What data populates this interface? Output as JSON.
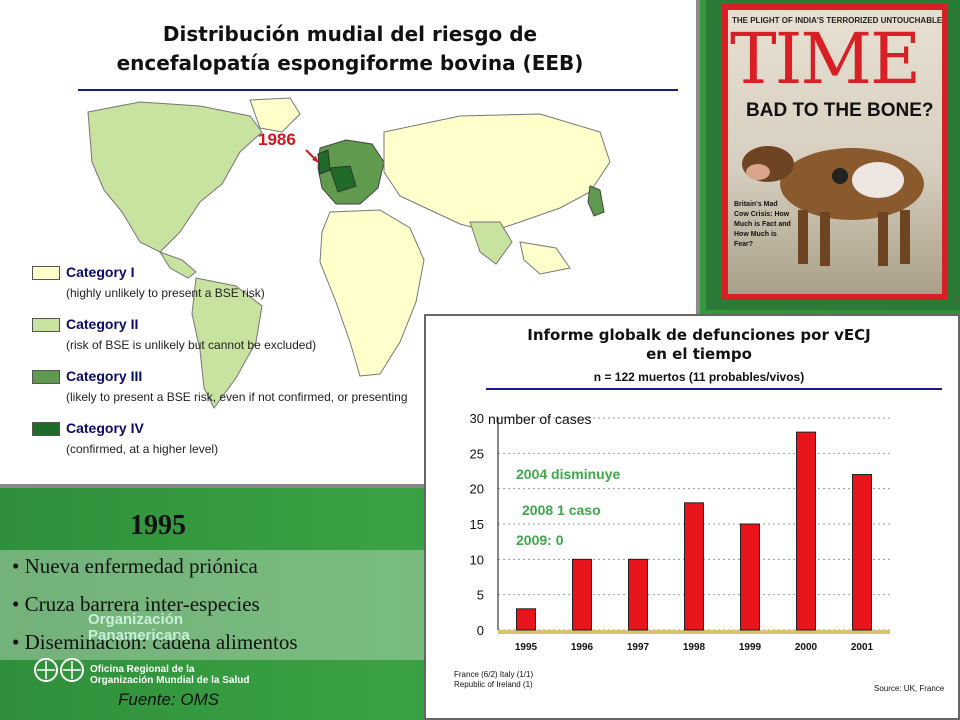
{
  "map_title": {
    "line1": "Distribución mudial del riesgo de",
    "line2": "encefalopatía espongiforme bovina (EEB)"
  },
  "map_label_year": "1986",
  "legend": [
    {
      "name": "Category I",
      "desc": "(highly unlikely to present a BSE risk)",
      "color": "#ffffcc"
    },
    {
      "name": "Category II",
      "desc": "(risk of BSE is unlikely but cannot be excluded)",
      "color": "#c8e3a0"
    },
    {
      "name": "Category III",
      "desc": "(likely to present a BSE risk, even if not confirmed, or presenting",
      "color": "#5f9a4e"
    },
    {
      "name": "Category IV",
      "desc": "(confirmed, at a higher level)",
      "color": "#1f6b2a"
    }
  ],
  "time_cover": {
    "top_text": "THE PLIGHT OF INDIA'S TERRORIZED UNTOUCHABLES",
    "title": "TIME",
    "headline": "BAD TO THE BONE?",
    "side_text": "Britain's Mad Cow Crisis: How Much is Fact and How Much is Fear?"
  },
  "left_panel": {
    "year": "1995",
    "bullets": [
      "• Nueva enfermedad priónica",
      "• Cruza barrera inter-especies",
      "• Diseminación: cadena alimentos"
    ],
    "org_name": [
      "Organización",
      "Panamericana"
    ],
    "org_office": [
      "Oficina Regional de la",
      "Organización Mundial de la Salud"
    ],
    "source": "Fuente: OMS"
  },
  "chart_panel": {
    "title_line1": "Informe globalk de defunciones por vECJ",
    "title_line2": "en el tiempo",
    "subtitle": "n = 122 muertos (11 probables/vivos)",
    "annotations": [
      "2004 disminuye",
      "2008 1 caso",
      "2009: 0"
    ],
    "footnote_left": [
      "France (6/2) Italy (1/1)",
      "Republic of Ireland (1)"
    ],
    "footnote_right": "Source: UK, France"
  },
  "chart_data": {
    "type": "bar",
    "categories": [
      "1995",
      "1996",
      "1997",
      "1998",
      "1999",
      "2000",
      "2001"
    ],
    "values": [
      3,
      10,
      10,
      18,
      15,
      28,
      22
    ],
    "ylabel": "number of cases",
    "ylim": [
      0,
      30
    ],
    "yticks": [
      "0",
      "5",
      "10",
      "15",
      "20",
      "25",
      "30"
    ],
    "bar_color": "#e8141c",
    "grid": "dotted horizontal"
  }
}
